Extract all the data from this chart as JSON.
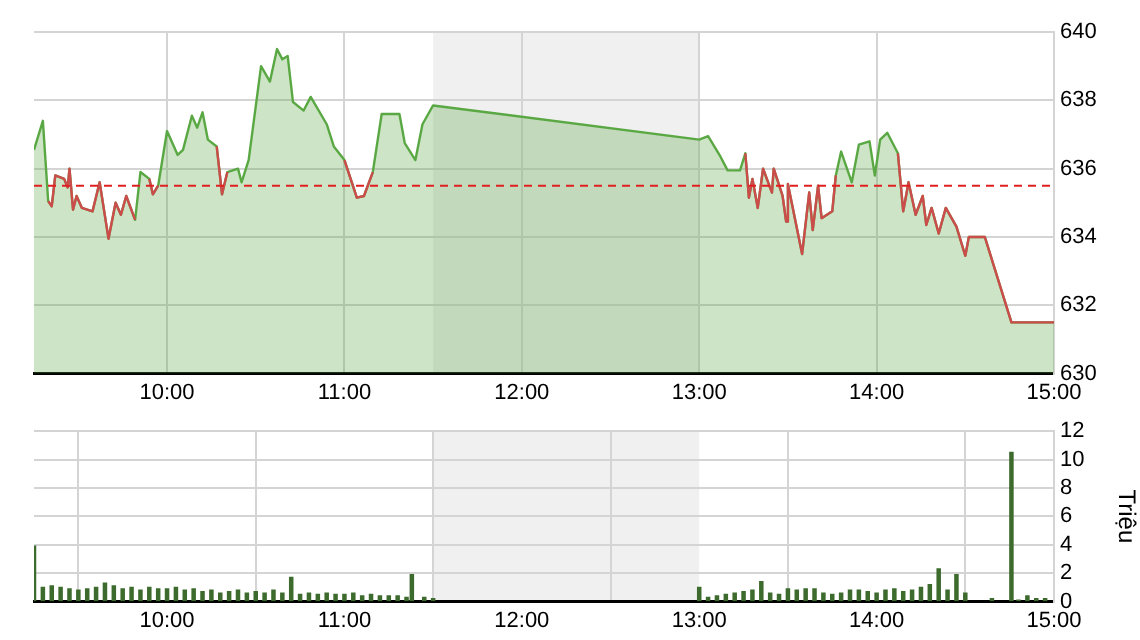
{
  "chart_data": [
    {
      "type": "area",
      "xlim": [
        9.25,
        15
      ],
      "xticks": [
        {
          "value": 10,
          "label": "10:00"
        },
        {
          "value": 11,
          "label": "11:00"
        },
        {
          "value": 12,
          "label": "12:00"
        },
        {
          "value": 13,
          "label": "13:00"
        },
        {
          "value": 14,
          "label": "14:00"
        },
        {
          "value": 15,
          "label": "15:00"
        }
      ],
      "ylim": [
        630,
        640
      ],
      "yticks": [
        630,
        632,
        634,
        636,
        638,
        640
      ],
      "grid": true,
      "series": [
        {
          "color": "#5aa843",
          "x": [
            9.25,
            9.3,
            9.33,
            9.35,
            9.37,
            9.42,
            9.44,
            9.45,
            9.47,
            9.49,
            9.52,
            9.58,
            9.62,
            9.67,
            9.71,
            9.74,
            9.77,
            9.82,
            9.85,
            9.9,
            9.92,
            9.95,
            10.0,
            10.06,
            10.09,
            10.14,
            10.17,
            10.2,
            10.23,
            10.28,
            10.31,
            10.34,
            10.4,
            10.42,
            10.46,
            10.53,
            10.58,
            10.62,
            10.65,
            10.68,
            10.71,
            10.77,
            10.81,
            10.9,
            10.94,
            11.0,
            11.07,
            11.11,
            11.16,
            11.21,
            11.31,
            11.34,
            11.4,
            11.44,
            11.5,
            13.0,
            13.05,
            13.12,
            13.16,
            13.23,
            13.26,
            13.28,
            13.3,
            13.33,
            13.36,
            13.41,
            13.42,
            13.47,
            13.49,
            13.5,
            13.58,
            13.62,
            13.64,
            13.67,
            13.69,
            13.75,
            13.77,
            13.8,
            13.86,
            13.9,
            13.96,
            13.99,
            14.02,
            14.06,
            14.12,
            14.15,
            14.18,
            14.22,
            14.26,
            14.28,
            14.31,
            14.35,
            14.39,
            14.45,
            14.5,
            14.52,
            14.61,
            14.76,
            15.0
          ],
          "values": [
            636.55,
            637.4,
            635.05,
            634.9,
            635.8,
            635.7,
            635.45,
            636.0,
            634.8,
            635.2,
            634.85,
            634.75,
            635.6,
            633.95,
            635.0,
            634.65,
            635.2,
            634.5,
            635.9,
            635.7,
            635.25,
            635.5,
            637.1,
            636.4,
            636.55,
            637.55,
            637.2,
            637.65,
            636.85,
            636.65,
            635.25,
            635.9,
            636.0,
            635.6,
            636.25,
            639.0,
            638.55,
            639.5,
            639.2,
            639.3,
            637.95,
            637.7,
            638.1,
            637.3,
            636.65,
            636.25,
            635.15,
            635.2,
            635.9,
            637.6,
            637.6,
            636.75,
            636.25,
            637.3,
            637.85,
            636.85,
            636.95,
            636.35,
            635.95,
            635.95,
            636.45,
            635.15,
            635.7,
            634.85,
            636.0,
            635.3,
            636.0,
            635.2,
            634.45,
            635.55,
            633.5,
            635.3,
            634.2,
            635.5,
            634.55,
            634.75,
            635.8,
            636.5,
            635.6,
            636.7,
            636.8,
            635.8,
            636.85,
            637.05,
            636.45,
            634.75,
            635.6,
            634.65,
            635.2,
            634.35,
            634.85,
            634.1,
            634.85,
            634.3,
            633.45,
            634.0,
            634.0,
            631.5,
            631.5
          ]
        },
        {
          "type": "line",
          "color": "#cc4b4b",
          "x": [
            9.33,
            9.35,
            9.37,
            9.42,
            9.44,
            9.45,
            9.47,
            9.49,
            9.52,
            9.58,
            9.62,
            9.67,
            9.71,
            9.74,
            9.77,
            9.82,
            9.86,
            9.9,
            9.92,
            9.95,
            10.1,
            10.28,
            10.31,
            10.34,
            10.5,
            11.0,
            11.07,
            11.11,
            11.16,
            12,
            13.26,
            13.28,
            13.3,
            13.33,
            13.36,
            13.41,
            13.42,
            13.47,
            13.49,
            13.5,
            13.58,
            13.62,
            13.64,
            13.67,
            13.69,
            13.75,
            13.77,
            14.0,
            14.12,
            14.15,
            14.18,
            14.22,
            14.26,
            14.28,
            14.31,
            14.35,
            14.39,
            14.45,
            14.5,
            14.52,
            14.61,
            14.76,
            15.0
          ],
          "values": [
            635.05,
            634.9,
            635.8,
            635.7,
            635.45,
            636.0,
            634.8,
            635.2,
            634.85,
            634.75,
            635.6,
            633.95,
            635.0,
            634.65,
            635.2,
            634.5,
            null,
            635.7,
            635.25,
            635.5,
            null,
            636.65,
            635.25,
            635.9,
            null,
            636.25,
            635.15,
            635.2,
            635.9,
            null,
            636.45,
            635.15,
            635.7,
            634.85,
            636.0,
            635.3,
            636.0,
            635.2,
            634.45,
            635.55,
            633.5,
            635.3,
            634.2,
            635.5,
            634.55,
            634.75,
            635.8,
            null,
            636.45,
            634.75,
            635.6,
            634.65,
            635.2,
            634.35,
            634.85,
            634.1,
            634.85,
            634.3,
            633.45,
            634.0,
            634.0,
            631.5,
            631.5
          ]
        }
      ],
      "ref_lines": [
        {
          "axis": "y",
          "value": 635.5,
          "color": "#e02020",
          "line_style": "dashed"
        }
      ],
      "bands": [
        {
          "axis": "x",
          "from": 11.5,
          "to": 13,
          "color": "#f0f0f0"
        }
      ]
    },
    {
      "type": "bar",
      "xlim": [
        9.25,
        15
      ],
      "xticks": [
        {
          "value": 10,
          "label": "10:00"
        },
        {
          "value": 11,
          "label": "11:00"
        },
        {
          "value": 12,
          "label": "12:00"
        },
        {
          "value": 13,
          "label": "13:00"
        },
        {
          "value": 14,
          "label": "14:00"
        },
        {
          "value": 15,
          "label": "15:00"
        }
      ],
      "ylim": [
        0,
        12
      ],
      "yticks": [
        0,
        2,
        4,
        6,
        8,
        10,
        12
      ],
      "grid": true,
      "ylabel": "Triệu",
      "series": [
        {
          "color": "#3d6b2e",
          "x": [
            9.25,
            9.3,
            9.35,
            9.4,
            9.45,
            9.5,
            9.55,
            9.6,
            9.65,
            9.7,
            9.75,
            9.8,
            9.85,
            9.9,
            9.95,
            10.0,
            10.05,
            10.1,
            10.15,
            10.2,
            10.25,
            10.3,
            10.35,
            10.4,
            10.45,
            10.5,
            10.55,
            10.6,
            10.65,
            10.7,
            10.75,
            10.8,
            10.85,
            10.9,
            10.95,
            11.0,
            11.05,
            11.1,
            11.15,
            11.2,
            11.25,
            11.3,
            11.35,
            11.38,
            11.45,
            11.5,
            13.0,
            13.05,
            13.1,
            13.15,
            13.2,
            13.25,
            13.3,
            13.35,
            13.4,
            13.45,
            13.5,
            13.55,
            13.6,
            13.65,
            13.7,
            13.75,
            13.8,
            13.85,
            13.9,
            13.95,
            14.0,
            14.05,
            14.1,
            14.15,
            14.2,
            14.25,
            14.3,
            14.35,
            14.4,
            14.45,
            14.5,
            14.55,
            14.6,
            14.65,
            14.7,
            14.76,
            14.8,
            14.85,
            14.9,
            14.95
          ],
          "values": [
            3.9,
            1.0,
            1.1,
            1.0,
            0.9,
            0.8,
            0.9,
            1.0,
            1.3,
            1.1,
            0.9,
            1.0,
            0.8,
            1.0,
            0.9,
            0.9,
            1.0,
            0.8,
            0.9,
            0.7,
            0.8,
            0.6,
            0.7,
            0.8,
            0.6,
            0.7,
            0.6,
            0.8,
            0.6,
            1.7,
            0.5,
            0.6,
            0.5,
            0.6,
            0.5,
            0.5,
            0.6,
            0.4,
            0.5,
            0.4,
            0.4,
            0.4,
            0.3,
            1.9,
            0.3,
            0.2,
            1.0,
            0.3,
            0.4,
            0.5,
            0.6,
            0.7,
            0.8,
            1.4,
            0.6,
            0.5,
            0.9,
            0.8,
            0.9,
            0.9,
            0.6,
            0.5,
            0.6,
            0.8,
            0.8,
            0.7,
            0.6,
            0.8,
            0.9,
            0.7,
            0.8,
            1.0,
            1.2,
            2.3,
            0.8,
            1.9,
            0.6,
            null,
            null,
            0.2,
            null,
            10.5,
            0.1,
            0.4,
            0.2,
            0.2
          ]
        }
      ],
      "bands": [
        {
          "axis": "x",
          "from": 11.5,
          "to": 13,
          "color": "#f0f0f0"
        }
      ]
    }
  ]
}
